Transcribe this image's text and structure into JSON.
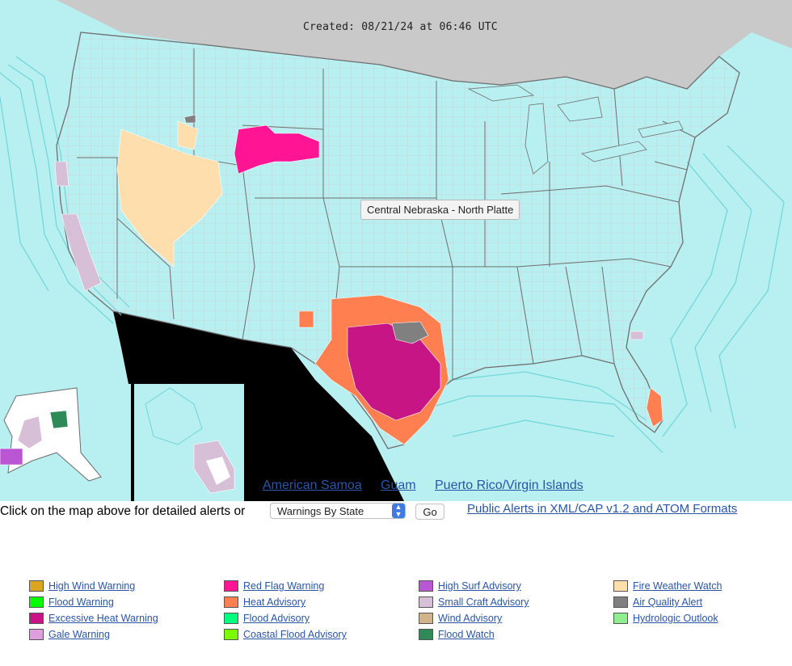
{
  "map": {
    "created_label": "Created: 08/21/24 at 06:46 UTC",
    "tooltip": "Central Nebraska - North Platte",
    "colors": {
      "ocean": "#b8f0f2",
      "land": "#ffffff",
      "canada": "#c9c9c9",
      "county_line": "#c7c7c7",
      "state_line": "#6e6e6e",
      "marine_zone": "#6fd5d8"
    }
  },
  "inset_links": [
    "American Samoa",
    "Guam",
    "Puerto Rico/Virgin Islands"
  ],
  "controls": {
    "instruction": "Click on the map above for detailed alerts or",
    "select_value": "Warnings By State",
    "go_label": "Go",
    "xml_link": "Public Alerts in XML/CAP v1.2 and ATOM Formats"
  },
  "legend": [
    {
      "label": "High Wind Warning",
      "color": "#daa520"
    },
    {
      "label": "Red Flag Warning",
      "color": "#ff1493"
    },
    {
      "label": "High Surf Advisory",
      "color": "#ba55d3"
    },
    {
      "label": "Fire Weather Watch",
      "color": "#ffdead"
    },
    {
      "label": "Flood Warning",
      "color": "#00ff00"
    },
    {
      "label": "Heat Advisory",
      "color": "#ff7f50"
    },
    {
      "label": "Small Craft Advisory",
      "color": "#d8bfd8"
    },
    {
      "label": "Air Quality Alert",
      "color": "#808080"
    },
    {
      "label": "Excessive Heat Warning",
      "color": "#c71585"
    },
    {
      "label": "Flood Advisory",
      "color": "#00ff7f"
    },
    {
      "label": "Wind Advisory",
      "color": "#d2b48c"
    },
    {
      "label": "Hydrologic Outlook",
      "color": "#90ee90"
    },
    {
      "label": "Gale Warning",
      "color": "#dda0dd"
    },
    {
      "label": "Coastal Flood Advisory",
      "color": "#7cfc00"
    },
    {
      "label": "Flood Watch",
      "color": "#2e8b57"
    }
  ]
}
